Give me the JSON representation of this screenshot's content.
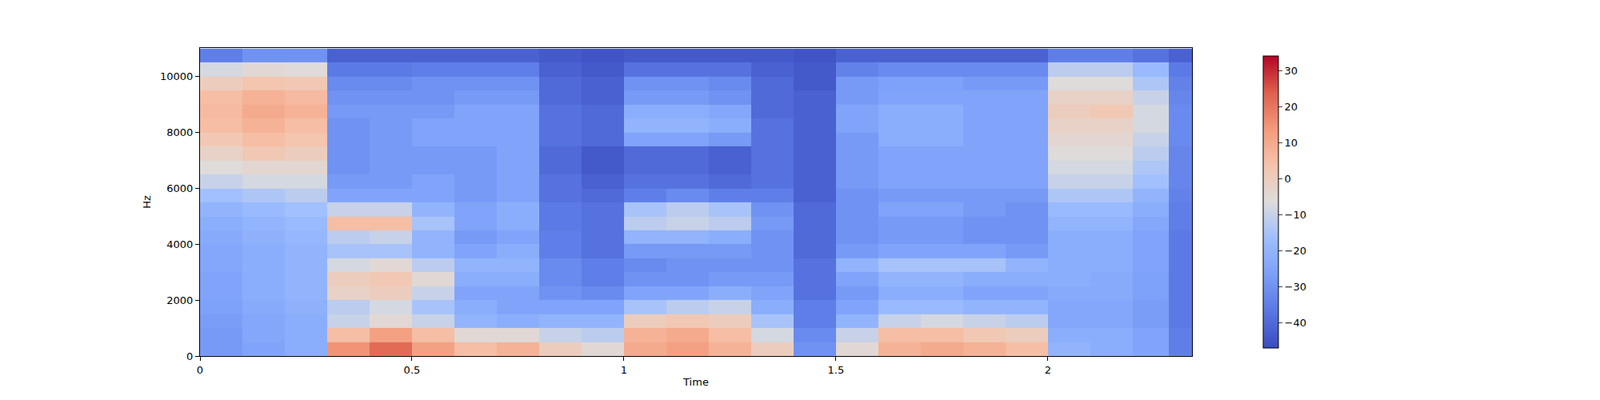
{
  "chart_data": {
    "type": "heatmap",
    "xlabel": "Time",
    "ylabel": "Hz",
    "xlim": [
      0,
      2.34
    ],
    "ylim": [
      0,
      11025
    ],
    "xticks": [
      0,
      0.5,
      1,
      1.5,
      2
    ],
    "yticks": [
      0,
      2000,
      4000,
      6000,
      8000,
      10000
    ],
    "x": [
      0.05,
      0.15,
      0.25,
      0.35,
      0.45,
      0.55,
      0.65,
      0.75,
      0.85,
      0.95,
      1.05,
      1.15,
      1.25,
      1.35,
      1.45,
      1.55,
      1.65,
      1.75,
      1.85,
      1.95,
      2.05,
      2.15,
      2.25,
      2.32
    ],
    "y": [
      250,
      750,
      1250,
      1750,
      2250,
      2750,
      3250,
      3750,
      4250,
      4750,
      5250,
      5750,
      6250,
      6750,
      7250,
      7750,
      8250,
      8750,
      9250,
      9750,
      10250,
      10750
    ],
    "cells": [
      [
        -28,
        -25,
        -22,
        15,
        22,
        12,
        5,
        8,
        0,
        -5,
        10,
        12,
        8,
        0,
        -30,
        -5,
        8,
        10,
        8,
        5,
        -20,
        -22,
        -25,
        -35
      ],
      [
        -28,
        -24,
        -22,
        5,
        12,
        5,
        -5,
        -5,
        -10,
        -12,
        8,
        10,
        5,
        -8,
        -32,
        -10,
        5,
        5,
        2,
        0,
        -22,
        -22,
        -25,
        -35
      ],
      [
        -27,
        -24,
        -22,
        -10,
        -5,
        -10,
        -20,
        -22,
        -20,
        -20,
        0,
        2,
        0,
        -15,
        -35,
        -20,
        -10,
        -8,
        -10,
        -12,
        -24,
        -24,
        -27,
        -36
      ],
      [
        -26,
        -23,
        -21,
        -12,
        -8,
        -15,
        -22,
        -25,
        -25,
        -25,
        -15,
        -12,
        -10,
        -22,
        -35,
        -25,
        -18,
        -18,
        -20,
        -20,
        -24,
        -24,
        -27,
        -36
      ],
      [
        -25,
        -22,
        -20,
        -2,
        0,
        -10,
        -25,
        -25,
        -30,
        -32,
        -25,
        -25,
        -22,
        -25,
        -38,
        -28,
        -22,
        -22,
        -25,
        -25,
        -23,
        -23,
        -26,
        -36
      ],
      [
        -25,
        -22,
        -20,
        0,
        2,
        -5,
        -22,
        -22,
        -32,
        -35,
        -30,
        -30,
        -28,
        -28,
        -38,
        -25,
        -20,
        -20,
        -22,
        -22,
        -22,
        -23,
        -26,
        -36
      ],
      [
        -24,
        -22,
        -20,
        -8,
        -5,
        -12,
        -20,
        -20,
        -32,
        -35,
        -32,
        -30,
        -30,
        -30,
        -38,
        -20,
        -15,
        -15,
        -15,
        -20,
        -22,
        -22,
        -25,
        -36
      ],
      [
        -24,
        -22,
        -20,
        -15,
        -15,
        -20,
        -25,
        -22,
        -35,
        -38,
        -28,
        -28,
        -28,
        -30,
        -40,
        -28,
        -25,
        -25,
        -25,
        -28,
        -22,
        -22,
        -25,
        -36
      ],
      [
        -23,
        -21,
        -19,
        -12,
        -10,
        -20,
        -28,
        -25,
        -35,
        -38,
        -20,
        -20,
        -22,
        -30,
        -40,
        -30,
        -28,
        -28,
        -30,
        -30,
        -22,
        -22,
        -25,
        -36
      ],
      [
        -22,
        -20,
        -18,
        5,
        5,
        -15,
        -25,
        -22,
        -36,
        -38,
        -12,
        -10,
        -12,
        -28,
        -40,
        -30,
        -28,
        -28,
        -30,
        -30,
        -20,
        -20,
        -24,
        -35
      ],
      [
        -20,
        -18,
        -16,
        -10,
        -10,
        -20,
        -25,
        -22,
        -36,
        -38,
        -15,
        -12,
        -15,
        -30,
        -40,
        -30,
        -25,
        -25,
        -28,
        -30,
        -18,
        -18,
        -22,
        -35
      ],
      [
        -16,
        -14,
        -12,
        -25,
        -25,
        -25,
        -28,
        -25,
        -38,
        -40,
        -35,
        -32,
        -35,
        -35,
        -42,
        -30,
        -28,
        -28,
        -28,
        -28,
        -14,
        -14,
        -20,
        -34
      ],
      [
        -10,
        -8,
        -8,
        -28,
        -28,
        -25,
        -28,
        -25,
        -38,
        -42,
        -38,
        -38,
        -40,
        -38,
        -42,
        -28,
        -25,
        -25,
        -25,
        -25,
        -10,
        -10,
        -16,
        -33
      ],
      [
        -6,
        -4,
        -4,
        -30,
        -28,
        -28,
        -28,
        -25,
        -40,
        -44,
        -40,
        -40,
        -42,
        -38,
        -42,
        -28,
        -25,
        -25,
        -25,
        -25,
        -8,
        -8,
        -14,
        -33
      ],
      [
        -2,
        2,
        0,
        -30,
        -28,
        -28,
        -28,
        -25,
        -40,
        -44,
        -40,
        -40,
        -42,
        -38,
        -42,
        -28,
        -25,
        -25,
        -25,
        -25,
        -6,
        -6,
        -12,
        -33
      ],
      [
        2,
        5,
        3,
        -30,
        -28,
        -25,
        -25,
        -25,
        -38,
        -40,
        -25,
        -25,
        -28,
        -38,
        -42,
        -28,
        -22,
        -22,
        -25,
        -25,
        -4,
        -4,
        -10,
        -32
      ],
      [
        5,
        8,
        5,
        -30,
        -28,
        -25,
        -25,
        -25,
        -38,
        -40,
        -20,
        -20,
        -22,
        -38,
        -42,
        -25,
        -22,
        -22,
        -25,
        -25,
        -2,
        -2,
        -8,
        -32
      ],
      [
        6,
        10,
        8,
        -28,
        -28,
        -28,
        -25,
        -25,
        -38,
        -40,
        -22,
        -22,
        -24,
        -40,
        -42,
        -25,
        -22,
        -22,
        -25,
        -25,
        0,
        2,
        -8,
        -32
      ],
      [
        5,
        8,
        6,
        -30,
        -30,
        -30,
        -28,
        -28,
        -40,
        -42,
        -28,
        -28,
        -30,
        -40,
        -42,
        -28,
        -25,
        -25,
        -25,
        -25,
        -2,
        -2,
        -10,
        -33
      ],
      [
        0,
        3,
        2,
        -32,
        -32,
        -30,
        -30,
        -30,
        -40,
        -42,
        -30,
        -30,
        -32,
        -40,
        -44,
        -28,
        -26,
        -26,
        -28,
        -28,
        -6,
        -6,
        -14,
        -34
      ],
      [
        -8,
        -5,
        -6,
        -36,
        -36,
        -35,
        -35,
        -35,
        -42,
        -44,
        -38,
        -38,
        -38,
        -42,
        -44,
        -34,
        -32,
        -32,
        -32,
        -32,
        -12,
        -12,
        -18,
        -36
      ],
      [
        -35,
        -30,
        -30,
        -42,
        -42,
        -42,
        -42,
        -42,
        -44,
        -45,
        -44,
        -44,
        -44,
        -44,
        -45,
        -42,
        -42,
        -42,
        -42,
        -42,
        -35,
        -35,
        -38,
        -42
      ]
    ],
    "colorbar_range": [
      -47,
      34
    ],
    "colorbar_ticks": [
      {
        "value": -40,
        "label": "−40"
      },
      {
        "value": -30,
        "label": "−30"
      },
      {
        "value": -20,
        "label": "−20"
      },
      {
        "value": -10,
        "label": "−10"
      },
      0,
      10,
      20,
      30
    ]
  }
}
